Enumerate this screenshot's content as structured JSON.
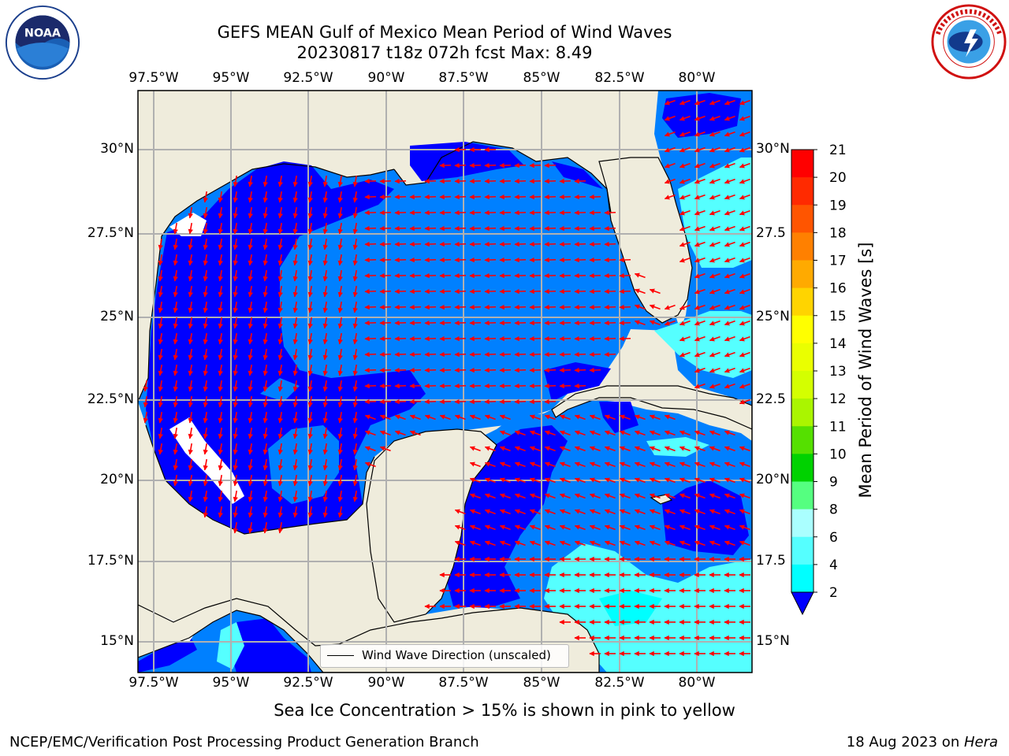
{
  "title_line1": "GEFS MEAN Gulf of Mexico Mean Period of Wind Waves",
  "title_line2": "20230817 t18z 072h fcst   Max: 8.49",
  "longitude_ticks": [
    "97.5°W",
    "95°W",
    "92.5°W",
    "90°W",
    "87.5°W",
    "85°W",
    "82.5°W",
    "80°W"
  ],
  "latitude_ticks_left": [
    "30°N",
    "27.5°N",
    "25°N",
    "22.5°N",
    "20°N",
    "17.5°N",
    "15°N"
  ],
  "latitude_ticks_right": [
    "30°N",
    "27.5",
    "25°N",
    "22.5",
    "20°N",
    "17.5",
    "15°N"
  ],
  "colorbar": {
    "label": "Mean Period of Wind Waves [s]",
    "ticks": [
      "21",
      "20",
      "19",
      "18",
      "17",
      "16",
      "15",
      "14",
      "13",
      "12",
      "11",
      "10",
      "9",
      "8",
      "6",
      "4",
      "2"
    ],
    "colors": [
      "#ff0000",
      "#ff2a00",
      "#ff5500",
      "#ff8000",
      "#ffaa00",
      "#ffd400",
      "#ffff00",
      "#eaff00",
      "#d4ff00",
      "#aaf500",
      "#55e000",
      "#00d200",
      "#55ff80",
      "#aaffff",
      "#55ffff",
      "#00ffff",
      "#0080ff"
    ],
    "extend_color": "#0000ff"
  },
  "legend_text": "Wind Wave Direction (unscaled)",
  "sea_ice_note": "Sea Ice Concentration > 15% is shown in pink to yellow",
  "credit": "NCEP/EMC/Verification Post Processing Product Generation Branch",
  "date_text": "18 Aug 2023 on ",
  "date_host": "Hera",
  "logos": {
    "left": "noaa-logo",
    "right": "nws-logo",
    "left_text": "NOAA"
  },
  "colors": {
    "land": "#efecdc",
    "deep_blue": "#0000ff",
    "med_blue": "#0080ff",
    "cyan": "#00ffff",
    "light_cyan": "#55ffff",
    "arrow": "#ff0000",
    "grid": "#b0b0b0"
  }
}
